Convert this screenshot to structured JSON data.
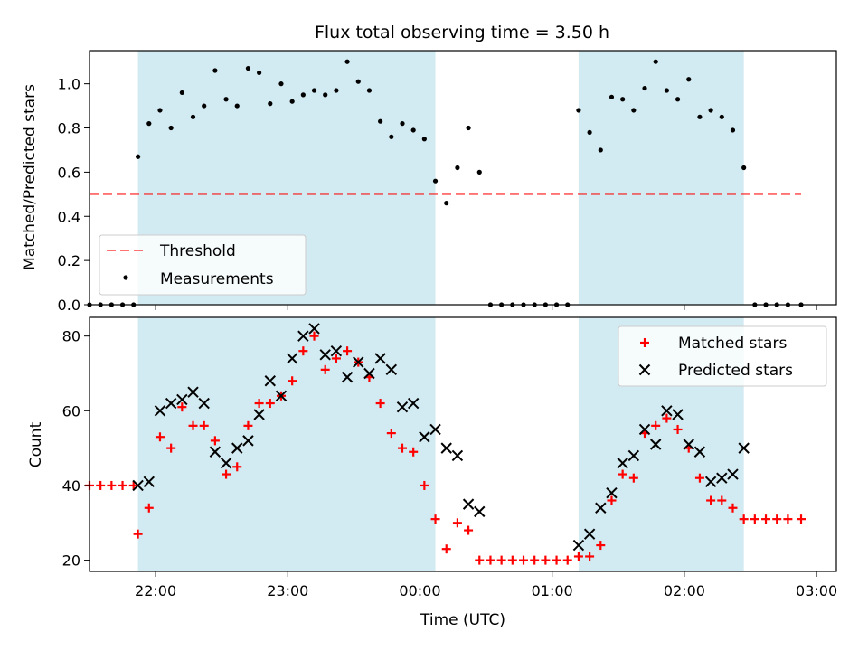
{
  "title": "Flux total observing time = 3.50 h",
  "colors": {
    "shade": "#add8e6",
    "threshold": "#ff0000",
    "measurements": "#000000",
    "matched": "#ff0000",
    "predicted": "#000000"
  },
  "chart_data": [
    {
      "type": "scatter",
      "ylabel": "Matched/Predicted stars",
      "ylim": [
        0,
        1.15
      ],
      "xlim_hours": [
        -2.5,
        3.15
      ],
      "yticks": [
        0.0,
        0.2,
        0.4,
        0.6,
        0.8,
        1.0
      ],
      "ytick_labels": [
        "0.0",
        "0.2",
        "0.4",
        "0.6",
        "0.8",
        "1.0"
      ],
      "legend_position": "lower-left",
      "legend": [
        "Threshold",
        "Measurements"
      ],
      "shaded_intervals": [
        [
          "21:52",
          "00:07"
        ],
        [
          "01:12",
          "02:27"
        ]
      ],
      "threshold": {
        "name": "Threshold",
        "value": 0.5,
        "x_range": [
          "21:30",
          "02:53"
        ]
      },
      "series": [
        {
          "name": "Measurements",
          "marker": "dot",
          "x": [
            "21:30",
            "21:35",
            "21:40",
            "21:45",
            "21:50",
            "21:52",
            "21:57",
            "22:02",
            "22:07",
            "22:12",
            "22:17",
            "22:22",
            "22:27",
            "22:32",
            "22:37",
            "22:42",
            "22:47",
            "22:52",
            "22:57",
            "23:02",
            "23:07",
            "23:12",
            "23:17",
            "23:22",
            "23:27",
            "23:32",
            "23:37",
            "23:42",
            "23:47",
            "23:52",
            "23:57",
            "00:02",
            "00:07",
            "00:12",
            "00:17",
            "00:22",
            "00:27",
            "00:32",
            "00:37",
            "00:42",
            "00:47",
            "00:52",
            "00:57",
            "01:02",
            "01:07",
            "01:12",
            "01:17",
            "01:22",
            "01:27",
            "01:32",
            "01:37",
            "01:42",
            "01:47",
            "01:52",
            "01:57",
            "02:02",
            "02:07",
            "02:12",
            "02:17",
            "02:22",
            "02:27",
            "02:32",
            "02:37",
            "02:42",
            "02:47",
            "02:53"
          ],
          "y": [
            0,
            0,
            0,
            0,
            0,
            0.67,
            0.82,
            0.88,
            0.8,
            0.96,
            0.85,
            0.9,
            1.06,
            0.93,
            0.9,
            1.07,
            1.05,
            0.91,
            1.0,
            0.92,
            0.95,
            0.97,
            0.95,
            0.97,
            1.1,
            1.01,
            0.97,
            0.83,
            0.76,
            0.82,
            0.79,
            0.75,
            0.56,
            0.46,
            0.62,
            0.8,
            0.6,
            0,
            0,
            0,
            0,
            0,
            0,
            0,
            0,
            0.88,
            0.78,
            0.7,
            0.94,
            0.93,
            0.88,
            0.98,
            1.1,
            0.97,
            0.93,
            1.02,
            0.85,
            0.88,
            0.85,
            0.79,
            0.62,
            0,
            0,
            0,
            0,
            0
          ]
        }
      ]
    },
    {
      "type": "scatter",
      "xlabel": "Time (UTC)",
      "ylabel": "Count",
      "ylim": [
        17,
        85
      ],
      "xlim_hours": [
        -2.5,
        3.15
      ],
      "yticks": [
        20,
        40,
        60,
        80
      ],
      "ytick_labels": [
        "20",
        "40",
        "60",
        "80"
      ],
      "xticks": [
        "22:00",
        "23:00",
        "00:00",
        "01:00",
        "02:00",
        "03:00"
      ],
      "legend_position": "top-right",
      "legend": [
        "Matched stars",
        "Predicted stars"
      ],
      "shaded_intervals": [
        [
          "21:52",
          "00:07"
        ],
        [
          "01:12",
          "02:27"
        ]
      ],
      "series": [
        {
          "name": "Matched stars",
          "marker": "plus",
          "x": [
            "21:30",
            "21:35",
            "21:40",
            "21:45",
            "21:50",
            "21:52",
            "21:57",
            "22:02",
            "22:07",
            "22:12",
            "22:17",
            "22:22",
            "22:27",
            "22:32",
            "22:37",
            "22:42",
            "22:47",
            "22:52",
            "22:57",
            "23:02",
            "23:07",
            "23:12",
            "23:17",
            "23:22",
            "23:27",
            "23:32",
            "23:37",
            "23:42",
            "23:47",
            "23:52",
            "23:57",
            "00:02",
            "00:07",
            "00:12",
            "00:17",
            "00:22",
            "00:27",
            "00:32",
            "00:37",
            "00:42",
            "00:47",
            "00:52",
            "00:57",
            "01:02",
            "01:07",
            "01:12",
            "01:17",
            "01:22",
            "01:27",
            "01:32",
            "01:37",
            "01:42",
            "01:47",
            "01:52",
            "01:57",
            "02:02",
            "02:07",
            "02:12",
            "02:17",
            "02:22",
            "02:27",
            "02:32",
            "02:37",
            "02:42",
            "02:47",
            "02:53"
          ],
          "y": [
            40,
            40,
            40,
            40,
            40,
            27,
            34,
            53,
            50,
            61,
            56,
            56,
            52,
            43,
            45,
            56,
            62,
            62,
            64,
            68,
            76,
            80,
            71,
            74,
            76,
            73,
            69,
            62,
            54,
            50,
            49,
            40,
            31,
            23,
            30,
            28,
            20,
            20,
            20,
            20,
            20,
            20,
            20,
            20,
            20,
            21,
            21,
            24,
            36,
            43,
            42,
            54,
            56,
            58,
            55,
            50,
            42,
            36,
            36,
            34,
            31,
            31,
            31,
            31,
            31,
            31
          ]
        },
        {
          "name": "Predicted stars",
          "marker": "cross",
          "x": [
            "21:52",
            "21:57",
            "22:02",
            "22:07",
            "22:12",
            "22:17",
            "22:22",
            "22:27",
            "22:32",
            "22:37",
            "22:42",
            "22:47",
            "22:52",
            "22:57",
            "23:02",
            "23:07",
            "23:12",
            "23:17",
            "23:22",
            "23:27",
            "23:32",
            "23:37",
            "23:42",
            "23:47",
            "23:52",
            "23:57",
            "00:02",
            "00:07",
            "00:12",
            "00:17",
            "00:22",
            "00:27",
            "01:12",
            "01:17",
            "01:22",
            "01:27",
            "01:32",
            "01:37",
            "01:42",
            "01:47",
            "01:52",
            "01:57",
            "02:02",
            "02:07",
            "02:12",
            "02:17",
            "02:22",
            "02:27"
          ],
          "y": [
            40,
            41,
            60,
            62,
            63,
            65,
            62,
            49,
            46,
            50,
            52,
            59,
            68,
            64,
            74,
            80,
            82,
            75,
            76,
            69,
            73,
            70,
            74,
            71,
            61,
            62,
            53,
            55,
            50,
            48,
            35,
            33,
            24,
            27,
            34,
            38,
            46,
            48,
            55,
            51,
            60,
            59,
            51,
            49,
            41,
            42,
            43,
            50
          ]
        }
      ]
    }
  ]
}
